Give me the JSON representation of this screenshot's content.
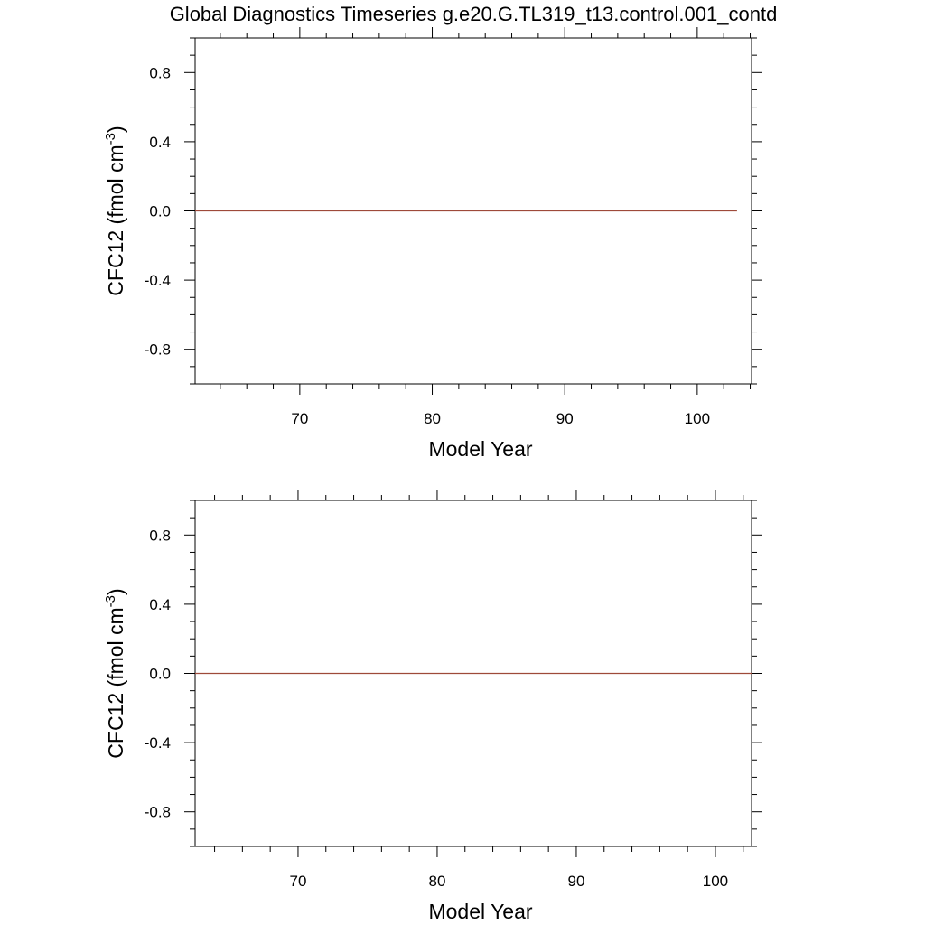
{
  "chart_data": [
    {
      "type": "line",
      "title": "Global Diagnostics Timeseries g.e20.G.TL319_t13.control.001_contd",
      "xlabel": "Model Year",
      "ylabel": "CFC12 (fmol cm",
      "ylabel_sup": "-3",
      "ylabel_close": ")",
      "xlim": [
        62.1,
        104.1
      ],
      "ylim": [
        -1.0,
        1.0
      ],
      "xticks": [
        70,
        80,
        90,
        100
      ],
      "xtick_labels": [
        "70",
        "80",
        "90",
        "100"
      ],
      "yticks": [
        0.8,
        0.4,
        0.0,
        -0.4,
        -0.8
      ],
      "ytick_labels": [
        "0.8",
        "0.4",
        "0.0",
        "-0.4",
        "-0.8"
      ],
      "grid": false,
      "series": [
        {
          "color": "#9e4a3a",
          "x": [
            62.1,
            103.0
          ],
          "y": [
            0.0,
            0.0
          ]
        }
      ]
    },
    {
      "type": "line",
      "title": "",
      "xlabel": "Model Year",
      "ylabel": "CFC12 (fmol cm",
      "ylabel_sup": "-3",
      "ylabel_close": ")",
      "xlim": [
        62.6,
        102.6
      ],
      "ylim": [
        -1.0,
        1.0
      ],
      "xticks": [
        70,
        80,
        90,
        100
      ],
      "xtick_labels": [
        "70",
        "80",
        "90",
        "100"
      ],
      "yticks": [
        0.8,
        0.4,
        0.0,
        -0.4,
        -0.8
      ],
      "ytick_labels": [
        "0.8",
        "0.4",
        "0.0",
        "-0.4",
        "-0.8"
      ],
      "grid": false,
      "series": [
        {
          "color": "#9e4a3a",
          "x": [
            62.6,
            102.6
          ],
          "y": [
            0.0,
            0.0
          ]
        }
      ]
    }
  ]
}
